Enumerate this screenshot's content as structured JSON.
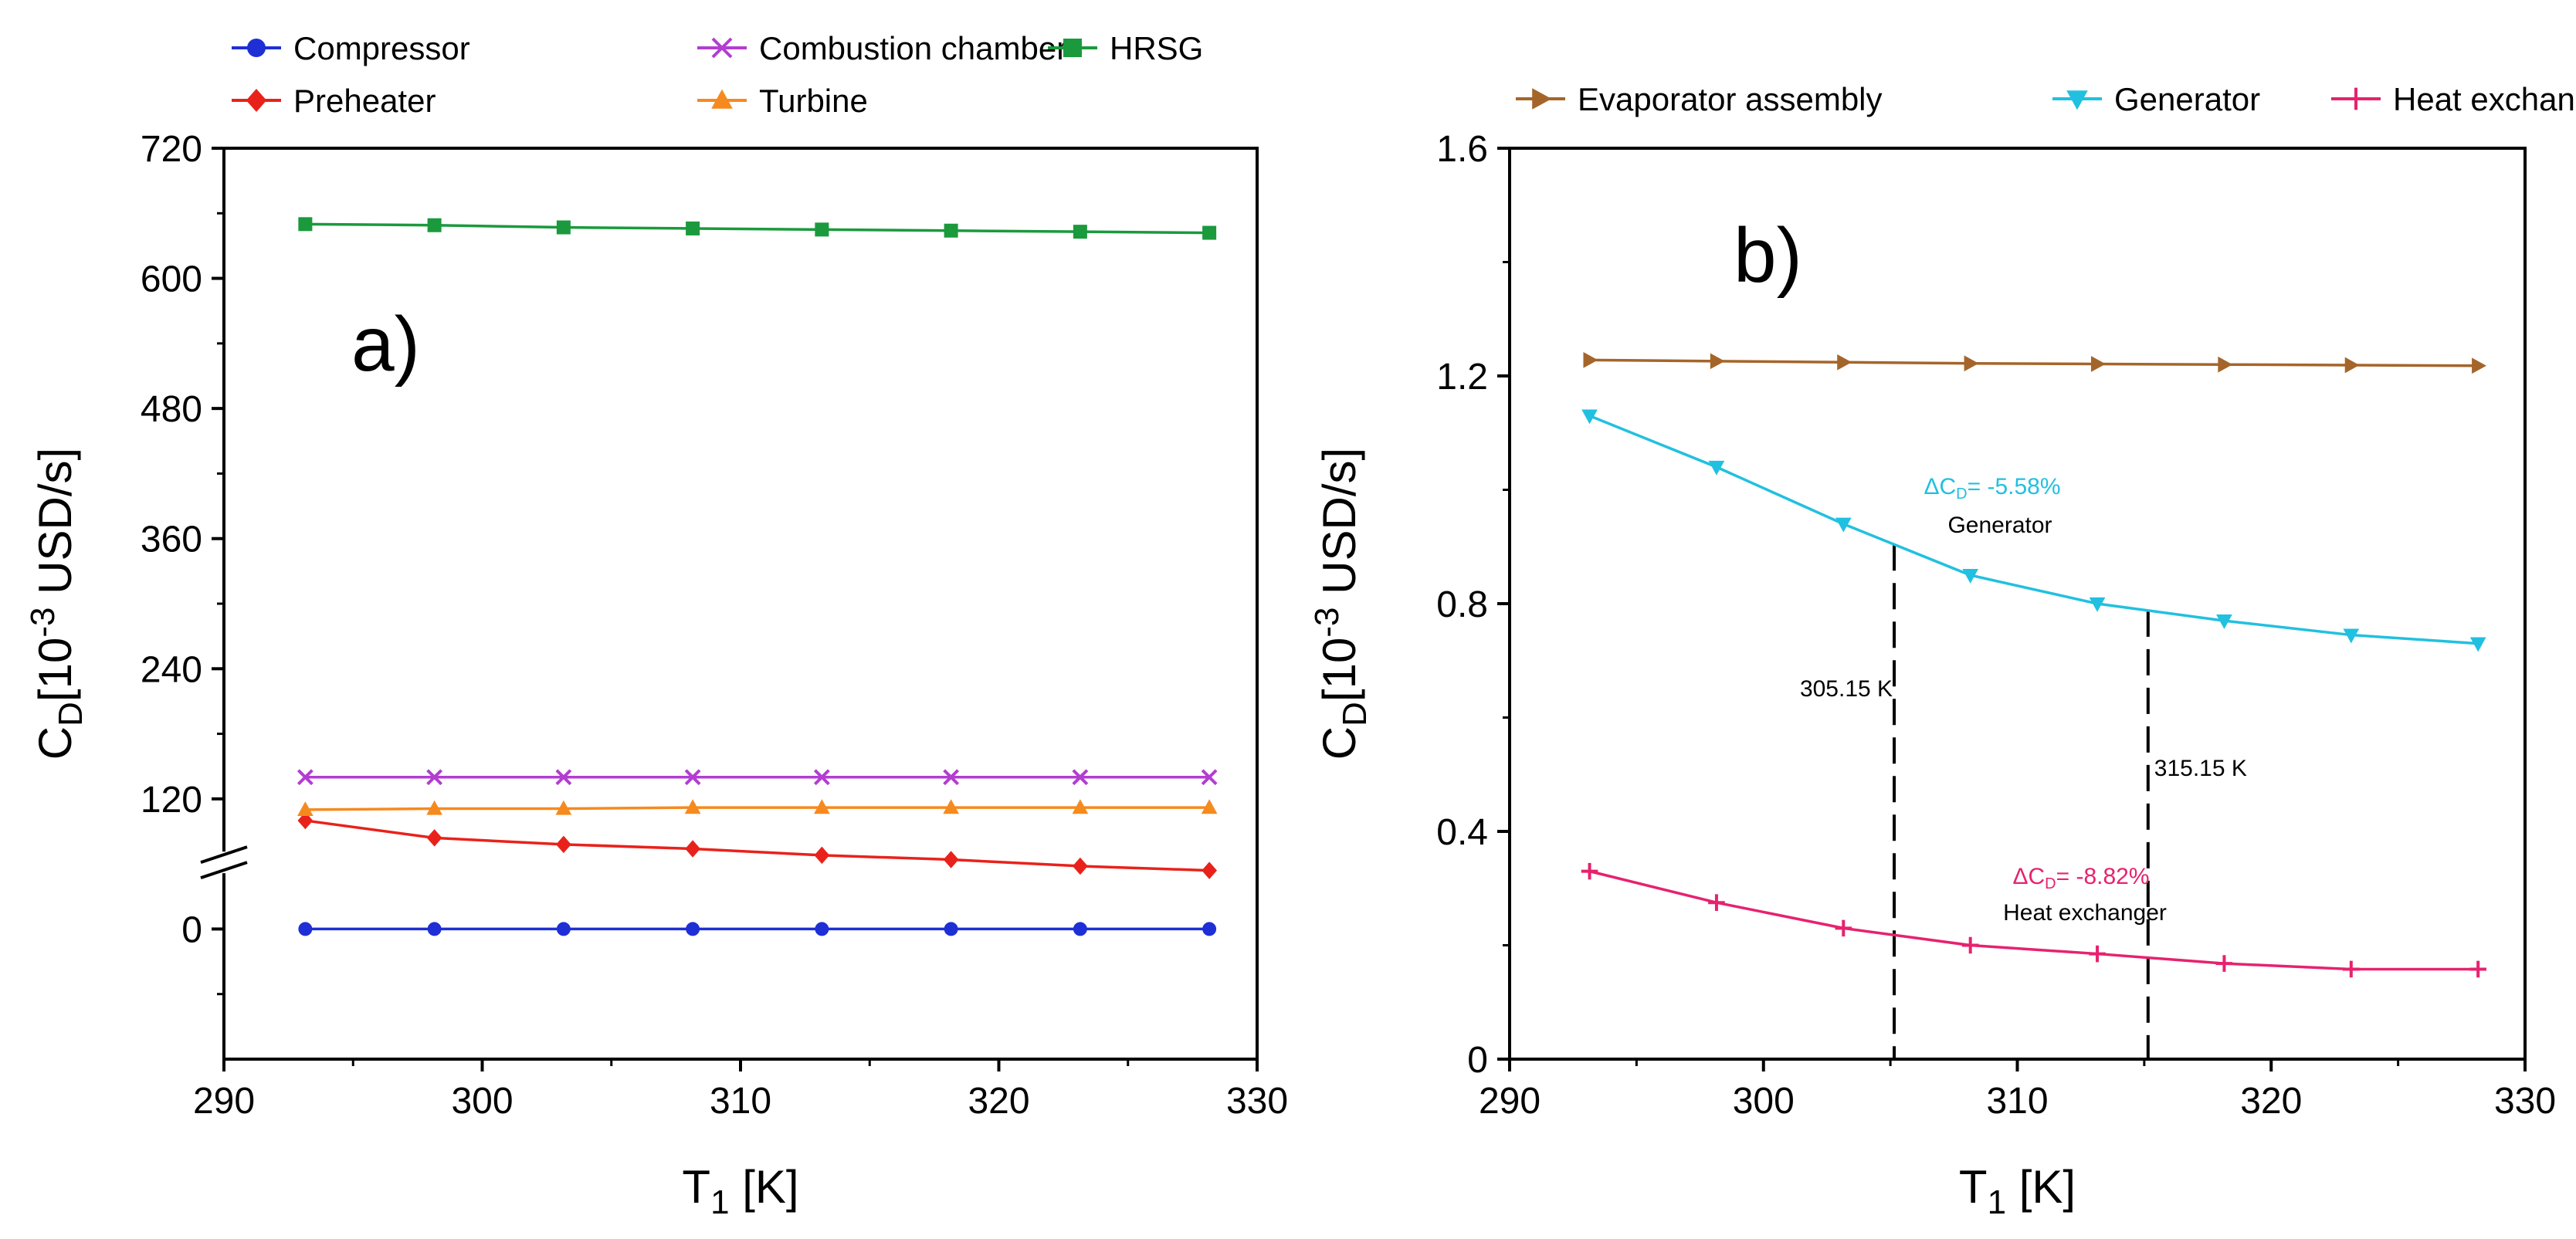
{
  "chart_data": [
    {
      "id": "a",
      "type": "line",
      "panel_label": "a)",
      "xlabel": "T",
      "xlabel_sub": "1",
      "xlabel_unit": "[K]",
      "ylabel": "C",
      "ylabel_sub": "D",
      "ylabel_unit_pre": "[10",
      "ylabel_unit_exp": "-3",
      "ylabel_unit_post": " USD/s]",
      "xlim": [
        290,
        330
      ],
      "x_ticks": [
        290,
        300,
        310,
        320,
        330
      ],
      "ylim": [
        -120,
        720
      ],
      "y_ticks": [
        0,
        120,
        240,
        360,
        480,
        600,
        720
      ],
      "y_axis_break": true,
      "legend_position": "top",
      "x": [
        293.15,
        298.15,
        303.15,
        308.15,
        313.15,
        318.15,
        323.15,
        328.15
      ],
      "series": [
        {
          "name": "Compressor",
          "color": "#1f2fd6",
          "marker": "circle",
          "values": [
            0,
            0,
            0,
            0,
            0,
            0,
            0,
            0
          ]
        },
        {
          "name": "Combustion chamber",
          "color": "#b23dd1",
          "marker": "x",
          "values": [
            140,
            140,
            140,
            140,
            140,
            140,
            140,
            140
          ]
        },
        {
          "name": "HRSG",
          "color": "#1a9a3c",
          "marker": "square",
          "values": [
            650,
            649,
            647,
            646,
            645,
            644,
            643,
            642
          ]
        },
        {
          "name": "Preheater",
          "color": "#e8221b",
          "marker": "diamond",
          "values": [
            100,
            84,
            78,
            74,
            68,
            64,
            58,
            54
          ]
        },
        {
          "name": "Turbine",
          "color": "#f58a1f",
          "marker": "triangle-up",
          "values": [
            110,
            111,
            111,
            112,
            112,
            112,
            112,
            112
          ]
        }
      ]
    },
    {
      "id": "b",
      "type": "line",
      "panel_label": "b)",
      "xlabel": "T",
      "xlabel_sub": "1",
      "xlabel_unit": "[K]",
      "ylabel": "C",
      "ylabel_sub": "D",
      "ylabel_unit_pre": "[10",
      "ylabel_unit_exp": "-3",
      "ylabel_unit_post": " USD/s]",
      "xlim": [
        290,
        330
      ],
      "x_ticks": [
        290,
        300,
        310,
        320,
        330
      ],
      "ylim": [
        0,
        1.6
      ],
      "y_ticks": [
        0,
        0.4,
        0.8,
        1.2,
        1.6
      ],
      "y_tick_labels": [
        "0",
        "0.4",
        "0.8",
        "1.2",
        "1.6"
      ],
      "legend_position": "top",
      "x": [
        293.15,
        298.15,
        303.15,
        308.15,
        313.15,
        318.15,
        323.15,
        328.15
      ],
      "series": [
        {
          "name": "Evaporator assembly",
          "color": "#a5652a",
          "marker": "triangle-right",
          "values": [
            1.228,
            1.226,
            1.224,
            1.222,
            1.221,
            1.22,
            1.219,
            1.218
          ]
        },
        {
          "name": "Generator",
          "color": "#21c0e0",
          "marker": "triangle-down",
          "values": [
            1.13,
            1.04,
            0.94,
            0.85,
            0.8,
            0.77,
            0.745,
            0.73
          ]
        },
        {
          "name": "Heat exchanger",
          "color": "#e6226f",
          "marker": "plus",
          "values": [
            0.33,
            0.275,
            0.23,
            0.2,
            0.185,
            0.168,
            0.158,
            0.158
          ]
        }
      ],
      "vlines": [
        {
          "x": 305.15,
          "label": "305.15 K"
        },
        {
          "x": 315.15,
          "label": "315.15 K"
        }
      ],
      "annotations": [
        {
          "id": "gen",
          "line1": "ΔC",
          "line1_sub": "D",
          "line1_rest": "= -5.58%",
          "line2": "Generator",
          "color": "#21c0e0"
        },
        {
          "id": "hx",
          "line1": "ΔC",
          "line1_sub": "D",
          "line1_rest": "= -8.82%",
          "line2": "Heat exchanger",
          "color": "#e6226f"
        }
      ]
    }
  ]
}
